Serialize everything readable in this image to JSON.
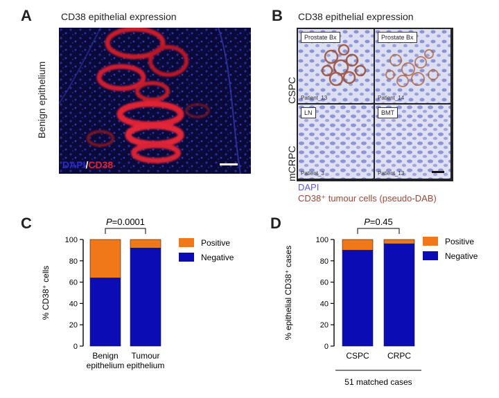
{
  "panelA": {
    "letter": "A",
    "title": "CD38 epithelial expression",
    "side_label": "Benign epithelium",
    "legend_dapi": "DAPI",
    "legend_slash": "/",
    "legend_cd38": "CD38"
  },
  "panelB": {
    "letter": "B",
    "title": "CD38 epithelial expression",
    "row_labels": [
      "CSPC",
      "mCRPC"
    ],
    "tiles": [
      {
        "chip": "Prostate Bx",
        "patient": "Patient_13"
      },
      {
        "chip": "Prostate Bx",
        "patient": "Patient_14"
      },
      {
        "chip": "LN",
        "patient": "Patient_3"
      },
      {
        "chip": "BMT",
        "patient": "Patient_13"
      }
    ],
    "legend_dapi": "DAPI",
    "legend_cd38": "CD38⁺ tumour cells (pseudo-DAB)"
  },
  "panelC": {
    "letter": "C",
    "chart_data": {
      "type": "bar",
      "stacked": true,
      "categories": [
        [
          "Benign",
          "epithelium"
        ],
        [
          "Tumour",
          "epithelium"
        ]
      ],
      "series": [
        {
          "name": "Negative",
          "color": "#0c0cb4",
          "values": [
            64,
            92
          ]
        },
        {
          "name": "Positive",
          "color": "#f07818",
          "values": [
            36,
            8
          ]
        }
      ],
      "ylabel": "% CD38⁺ cells",
      "ylim": [
        0,
        100
      ],
      "yticks": [
        0,
        20,
        40,
        60,
        80,
        100
      ],
      "annotation": {
        "p_label": "P",
        "p_value": "=0.0001"
      },
      "legend_position": "right"
    }
  },
  "panelD": {
    "letter": "D",
    "chart_data": {
      "type": "bar",
      "stacked": true,
      "categories": [
        [
          "CSPC"
        ],
        [
          "CRPC"
        ]
      ],
      "series": [
        {
          "name": "Negative",
          "color": "#0c0cb4",
          "values": [
            90,
            96
          ]
        },
        {
          "name": "Positive",
          "color": "#f07818",
          "values": [
            10,
            4
          ]
        }
      ],
      "ylabel": "% epithelial CD38⁺ cases",
      "ylim": [
        0,
        100
      ],
      "yticks": [
        0,
        20,
        40,
        60,
        80,
        100
      ],
      "annotation": {
        "p_label": "P",
        "p_value": "=0.45"
      },
      "group_label": "51 matched cases",
      "legend_position": "right"
    }
  }
}
